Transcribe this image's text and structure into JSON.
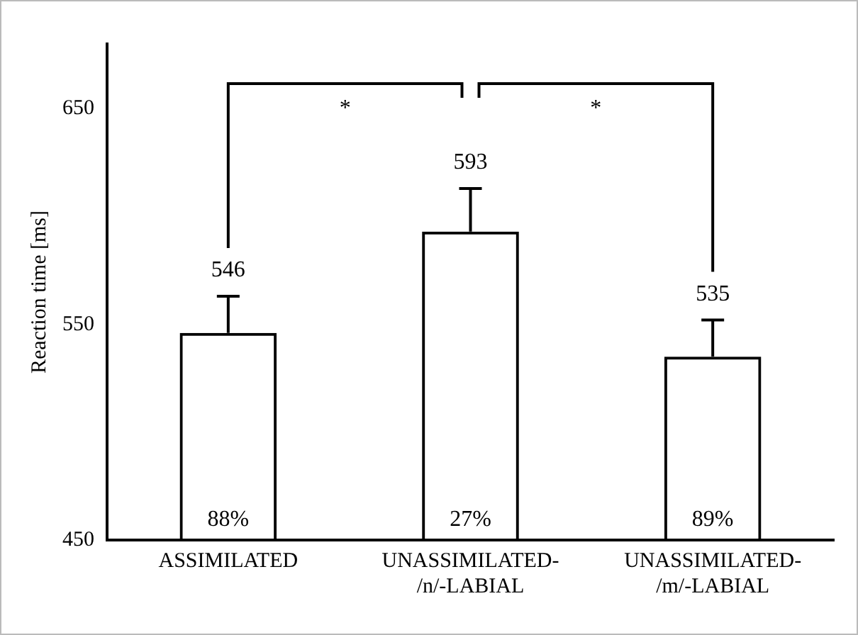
{
  "chart_data": {
    "type": "bar",
    "ylabel": "Reaction time [ms]",
    "categories": [
      "ASSIMILATED",
      "UNASSIMILATED-/n/-LABIAL",
      "UNASSIMILATED-/m/-LABIAL"
    ],
    "values": [
      546,
      593,
      535
    ],
    "color": "#000000",
    "errors": [
      [
        546,
        563
      ],
      [
        593,
        613
      ],
      [
        535,
        552
      ]
    ],
    "data_labels": true,
    "ylim": [
      450,
      680
    ],
    "yticks": [
      450,
      550,
      650
    ],
    "grid": false,
    "legend": false,
    "annotations": [
      "*",
      "*",
      "88%",
      "27%",
      "89%"
    ]
  }
}
